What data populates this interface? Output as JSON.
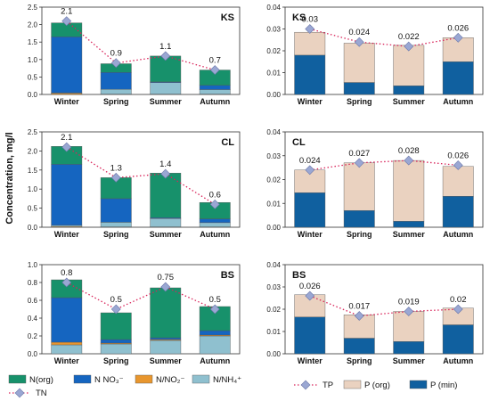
{
  "y_axis_label": "Concentration, mg/l",
  "colors": {
    "n_org": "#17916b",
    "n_no3": "#1565c0",
    "n_no2": "#e8962e",
    "n_nh4": "#8fc0cf",
    "p_org": "#ead2c0",
    "p_min": "#10609f",
    "marker": "#9aa7d3",
    "line": "#d9245a"
  },
  "legend": {
    "nitrogen": [
      {
        "label": "N(org)",
        "color": "#17916b"
      },
      {
        "label": "N NO₃⁻",
        "color": "#1565c0"
      },
      {
        "label": "N/NO₂⁻",
        "color": "#e8962e"
      },
      {
        "label": "N/NH₄⁺",
        "color": "#8fc0cf"
      }
    ],
    "tn_label": "TN",
    "phosphorus": [
      {
        "label": "P (org)",
        "color": "#ead2c0"
      },
      {
        "label": "P (min)",
        "color": "#10609f"
      }
    ],
    "tp_label": "TP"
  },
  "chart_data": [
    {
      "type": "bar",
      "stacked": true,
      "panel_label": "KS",
      "categories": [
        "Winter",
        "Spring",
        "Summer",
        "Autumn"
      ],
      "ylim": [
        0,
        2.5
      ],
      "yticks": [
        "0.0",
        "0.5",
        "1.0",
        "1.5",
        "2.0",
        "2.5"
      ],
      "series": [
        {
          "key": "n_no2",
          "values": [
            0.03,
            0.01,
            0.01,
            0.01
          ]
        },
        {
          "key": "n_nh4",
          "values": [
            0.02,
            0.14,
            0.33,
            0.13
          ]
        },
        {
          "key": "n_no3",
          "values": [
            1.6,
            0.48,
            0.02,
            0.12
          ]
        },
        {
          "key": "n_org",
          "values": [
            0.4,
            0.25,
            0.74,
            0.44
          ]
        }
      ],
      "total": {
        "name": "TN",
        "values": [
          2.1,
          0.9,
          1.1,
          0.7
        ],
        "labels": [
          "2.1",
          "0.9",
          "1.1",
          "0.7"
        ]
      }
    },
    {
      "type": "bar",
      "stacked": true,
      "panel_label": "KS",
      "categories": [
        "Winter",
        "Spring",
        "Summer",
        "Autumn"
      ],
      "ylim": [
        0,
        0.04
      ],
      "yticks": [
        "0.00",
        "0.01",
        "0.02",
        "0.03",
        "0.04"
      ],
      "series": [
        {
          "key": "p_min",
          "values": [
            0.018,
            0.0055,
            0.004,
            0.015
          ]
        },
        {
          "key": "p_org",
          "values": [
            0.0105,
            0.018,
            0.0185,
            0.011
          ]
        }
      ],
      "total": {
        "name": "TP",
        "values": [
          0.03,
          0.024,
          0.022,
          0.026
        ],
        "labels": [
          "0.03",
          "0.024",
          "0.022",
          "0.026"
        ]
      }
    },
    {
      "type": "bar",
      "stacked": true,
      "panel_label": "CL",
      "categories": [
        "Winter",
        "Spring",
        "Summer",
        "Autumn"
      ],
      "ylim": [
        0,
        2.5
      ],
      "yticks": [
        "0.0",
        "0.5",
        "1.0",
        "1.5",
        "2.0",
        "2.5"
      ],
      "series": [
        {
          "key": "n_no2",
          "values": [
            0.02,
            0.01,
            0.01,
            0.01
          ]
        },
        {
          "key": "n_nh4",
          "values": [
            0.03,
            0.12,
            0.22,
            0.11
          ]
        },
        {
          "key": "n_no3",
          "values": [
            1.6,
            0.62,
            0.02,
            0.1
          ]
        },
        {
          "key": "n_org",
          "values": [
            0.47,
            0.55,
            1.17,
            0.43
          ]
        }
      ],
      "total": {
        "name": "TN",
        "values": [
          2.1,
          1.3,
          1.4,
          0.6
        ],
        "labels": [
          "2.1",
          "1.3",
          "1.4",
          "0.6"
        ]
      }
    },
    {
      "type": "bar",
      "stacked": true,
      "panel_label": "CL",
      "categories": [
        "Winter",
        "Spring",
        "Summer",
        "Autumn"
      ],
      "ylim": [
        0,
        0.04
      ],
      "yticks": [
        "0.00",
        "0.01",
        "0.02",
        "0.03",
        "0.04"
      ],
      "series": [
        {
          "key": "p_min",
          "values": [
            0.0145,
            0.007,
            0.0025,
            0.013
          ]
        },
        {
          "key": "p_org",
          "values": [
            0.0095,
            0.02,
            0.0255,
            0.0125
          ]
        }
      ],
      "total": {
        "name": "TP",
        "values": [
          0.024,
          0.027,
          0.028,
          0.026
        ],
        "labels": [
          "0.024",
          "0.027",
          "0.028",
          "0.026"
        ]
      }
    },
    {
      "type": "bar",
      "stacked": true,
      "panel_label": "BS",
      "categories": [
        "Winter",
        "Spring",
        "Summer",
        "Autumn"
      ],
      "ylim": [
        0,
        1.0
      ],
      "yticks": [
        "0.0",
        "0.2",
        "0.4",
        "0.6",
        "0.8",
        "1.0"
      ],
      "series": [
        {
          "key": "n_nh4",
          "values": [
            0.1,
            0.11,
            0.15,
            0.2
          ]
        },
        {
          "key": "n_no2",
          "values": [
            0.03,
            0.01,
            0.01,
            0.01
          ]
        },
        {
          "key": "n_no3",
          "values": [
            0.5,
            0.04,
            0.02,
            0.05
          ]
        },
        {
          "key": "n_org",
          "values": [
            0.2,
            0.3,
            0.56,
            0.27
          ]
        }
      ],
      "total": {
        "name": "TN",
        "values": [
          0.8,
          0.5,
          0.75,
          0.5
        ],
        "labels": [
          "0.8",
          "0.5",
          "0.75",
          "0.5"
        ]
      }
    },
    {
      "type": "bar",
      "stacked": true,
      "panel_label": "BS",
      "categories": [
        "Winter",
        "Spring",
        "Summer",
        "Autumn"
      ],
      "ylim": [
        0,
        0.04
      ],
      "yticks": [
        "0.00",
        "0.01",
        "0.02",
        "0.03",
        "0.04"
      ],
      "series": [
        {
          "key": "p_min",
          "values": [
            0.0165,
            0.007,
            0.0055,
            0.013
          ]
        },
        {
          "key": "p_org",
          "values": [
            0.01,
            0.0105,
            0.0135,
            0.0075
          ]
        }
      ],
      "total": {
        "name": "TP",
        "values": [
          0.026,
          0.017,
          0.019,
          0.02
        ],
        "labels": [
          "0.026",
          "0.017",
          "0.019",
          "0.02"
        ]
      }
    }
  ]
}
